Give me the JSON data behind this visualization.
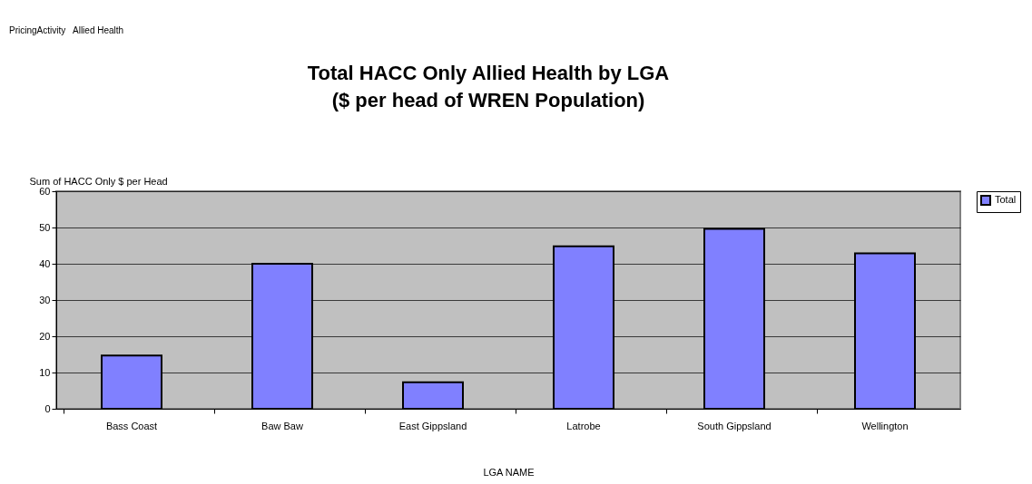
{
  "chart_data": {
    "type": "bar",
    "title": "Total HACC Only Allied Health by LGA\n($ per head of WREN Population)",
    "xlabel": "LGA NAME",
    "ylabel": "Sum of HACC Only $ per Head",
    "annotations": [
      "PricingActivity",
      "Allied Health"
    ],
    "categories": [
      "Bass Coast",
      "Baw Baw",
      "East Gippsland",
      "Latrobe",
      "South Gippsland",
      "Wellington"
    ],
    "series": [
      {
        "name": "Total",
        "color": "#8080ff",
        "values": [
          14.7,
          40,
          7.3,
          44.8,
          49.6,
          42.9
        ]
      }
    ],
    "ylim": [
      0,
      60
    ],
    "yticks": [
      0,
      10,
      20,
      30,
      40,
      50,
      60
    ],
    "grid": "y",
    "legend": "right"
  }
}
